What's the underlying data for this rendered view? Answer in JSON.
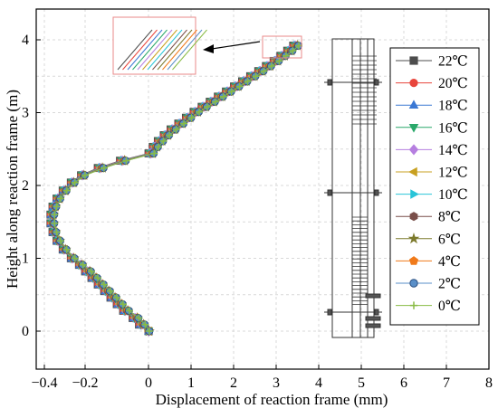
{
  "chart_data": {
    "type": "line",
    "title": "",
    "xlabel": "Displacement of reaction frame (mm)",
    "ylabel": "Height along reaction frame (m)",
    "xlim": [
      -0.5,
      8
    ],
    "ylim": [
      -0.4,
      4.2
    ],
    "xticks": [
      -0.4,
      -0.2,
      0,
      1,
      2,
      3,
      4,
      5,
      6,
      7,
      8
    ],
    "xtick_labels": [
      "−0.4",
      "−0.2",
      "0",
      "1",
      "2",
      "3",
      "4",
      "5",
      "6",
      "7",
      "8"
    ],
    "yticks": [
      0,
      1,
      2,
      3,
      4
    ],
    "ytick_labels": [
      "0",
      "1",
      "2",
      "3",
      "4"
    ],
    "grid": true,
    "legend_position": "right",
    "x": [
      0.0,
      -0.03,
      -0.05,
      -0.08,
      -0.1,
      -0.12,
      -0.14,
      -0.16,
      -0.18,
      -0.2,
      -0.23,
      -0.27,
      -0.31,
      -0.34,
      -0.36,
      -0.37,
      -0.37,
      -0.36,
      -0.34,
      -0.31,
      -0.27,
      -0.22,
      -0.16,
      -0.09,
      0.0,
      0.1,
      0.22,
      0.36,
      0.52,
      0.7,
      0.88,
      1.06,
      1.25,
      1.44,
      1.63,
      1.82,
      2.01,
      2.2,
      2.39,
      2.58,
      2.76,
      2.94,
      3.1,
      3.26,
      3.4
    ],
    "y": [
      0.0,
      0.09,
      0.18,
      0.28,
      0.37,
      0.46,
      0.55,
      0.64,
      0.73,
      0.82,
      0.91,
      1.0,
      1.12,
      1.24,
      1.36,
      1.48,
      1.6,
      1.71,
      1.82,
      1.93,
      2.04,
      2.14,
      2.24,
      2.34,
      2.44,
      2.53,
      2.61,
      2.69,
      2.77,
      2.85,
      2.93,
      3.01,
      3.08,
      3.15,
      3.22,
      3.29,
      3.36,
      3.43,
      3.5,
      3.57,
      3.64,
      3.71,
      3.78,
      3.85,
      3.92
    ],
    "series": [
      {
        "name": "22℃",
        "marker": "square",
        "color": "#4d4d4d",
        "offset": 0.0
      },
      {
        "name": "20℃",
        "marker": "circle",
        "color": "#e8453c",
        "offset": 0.012
      },
      {
        "name": "18℃",
        "marker": "triangle-up",
        "color": "#3a78d4",
        "offset": 0.024
      },
      {
        "name": "16℃",
        "marker": "triangle-down",
        "color": "#2aa86a",
        "offset": 0.036
      },
      {
        "name": "14℃",
        "marker": "diamond",
        "color": "#b67fe0",
        "offset": 0.048
      },
      {
        "name": "12℃",
        "marker": "triangle-left",
        "color": "#c8a020",
        "offset": 0.06
      },
      {
        "name": "10℃",
        "marker": "triangle-right",
        "color": "#29c4d8",
        "offset": 0.072
      },
      {
        "name": "8℃",
        "marker": "hexagon",
        "color": "#7a4f4a",
        "offset": 0.084
      },
      {
        "name": "6℃",
        "marker": "star",
        "color": "#7c7a2c",
        "offset": 0.096
      },
      {
        "name": "4℃",
        "marker": "pentagon",
        "color": "#f07a1a",
        "offset": 0.108
      },
      {
        "name": "2℃",
        "marker": "circle-sphere",
        "color": "#5a8fc8",
        "offset": 0.12
      },
      {
        "name": "0℃",
        "marker": "plus",
        "color": "#88bb44",
        "offset": 0.132
      }
    ]
  },
  "colors": {
    "grid": "#d9d9d9",
    "zoom_box": "#e88a8a",
    "structure": "#333333"
  }
}
